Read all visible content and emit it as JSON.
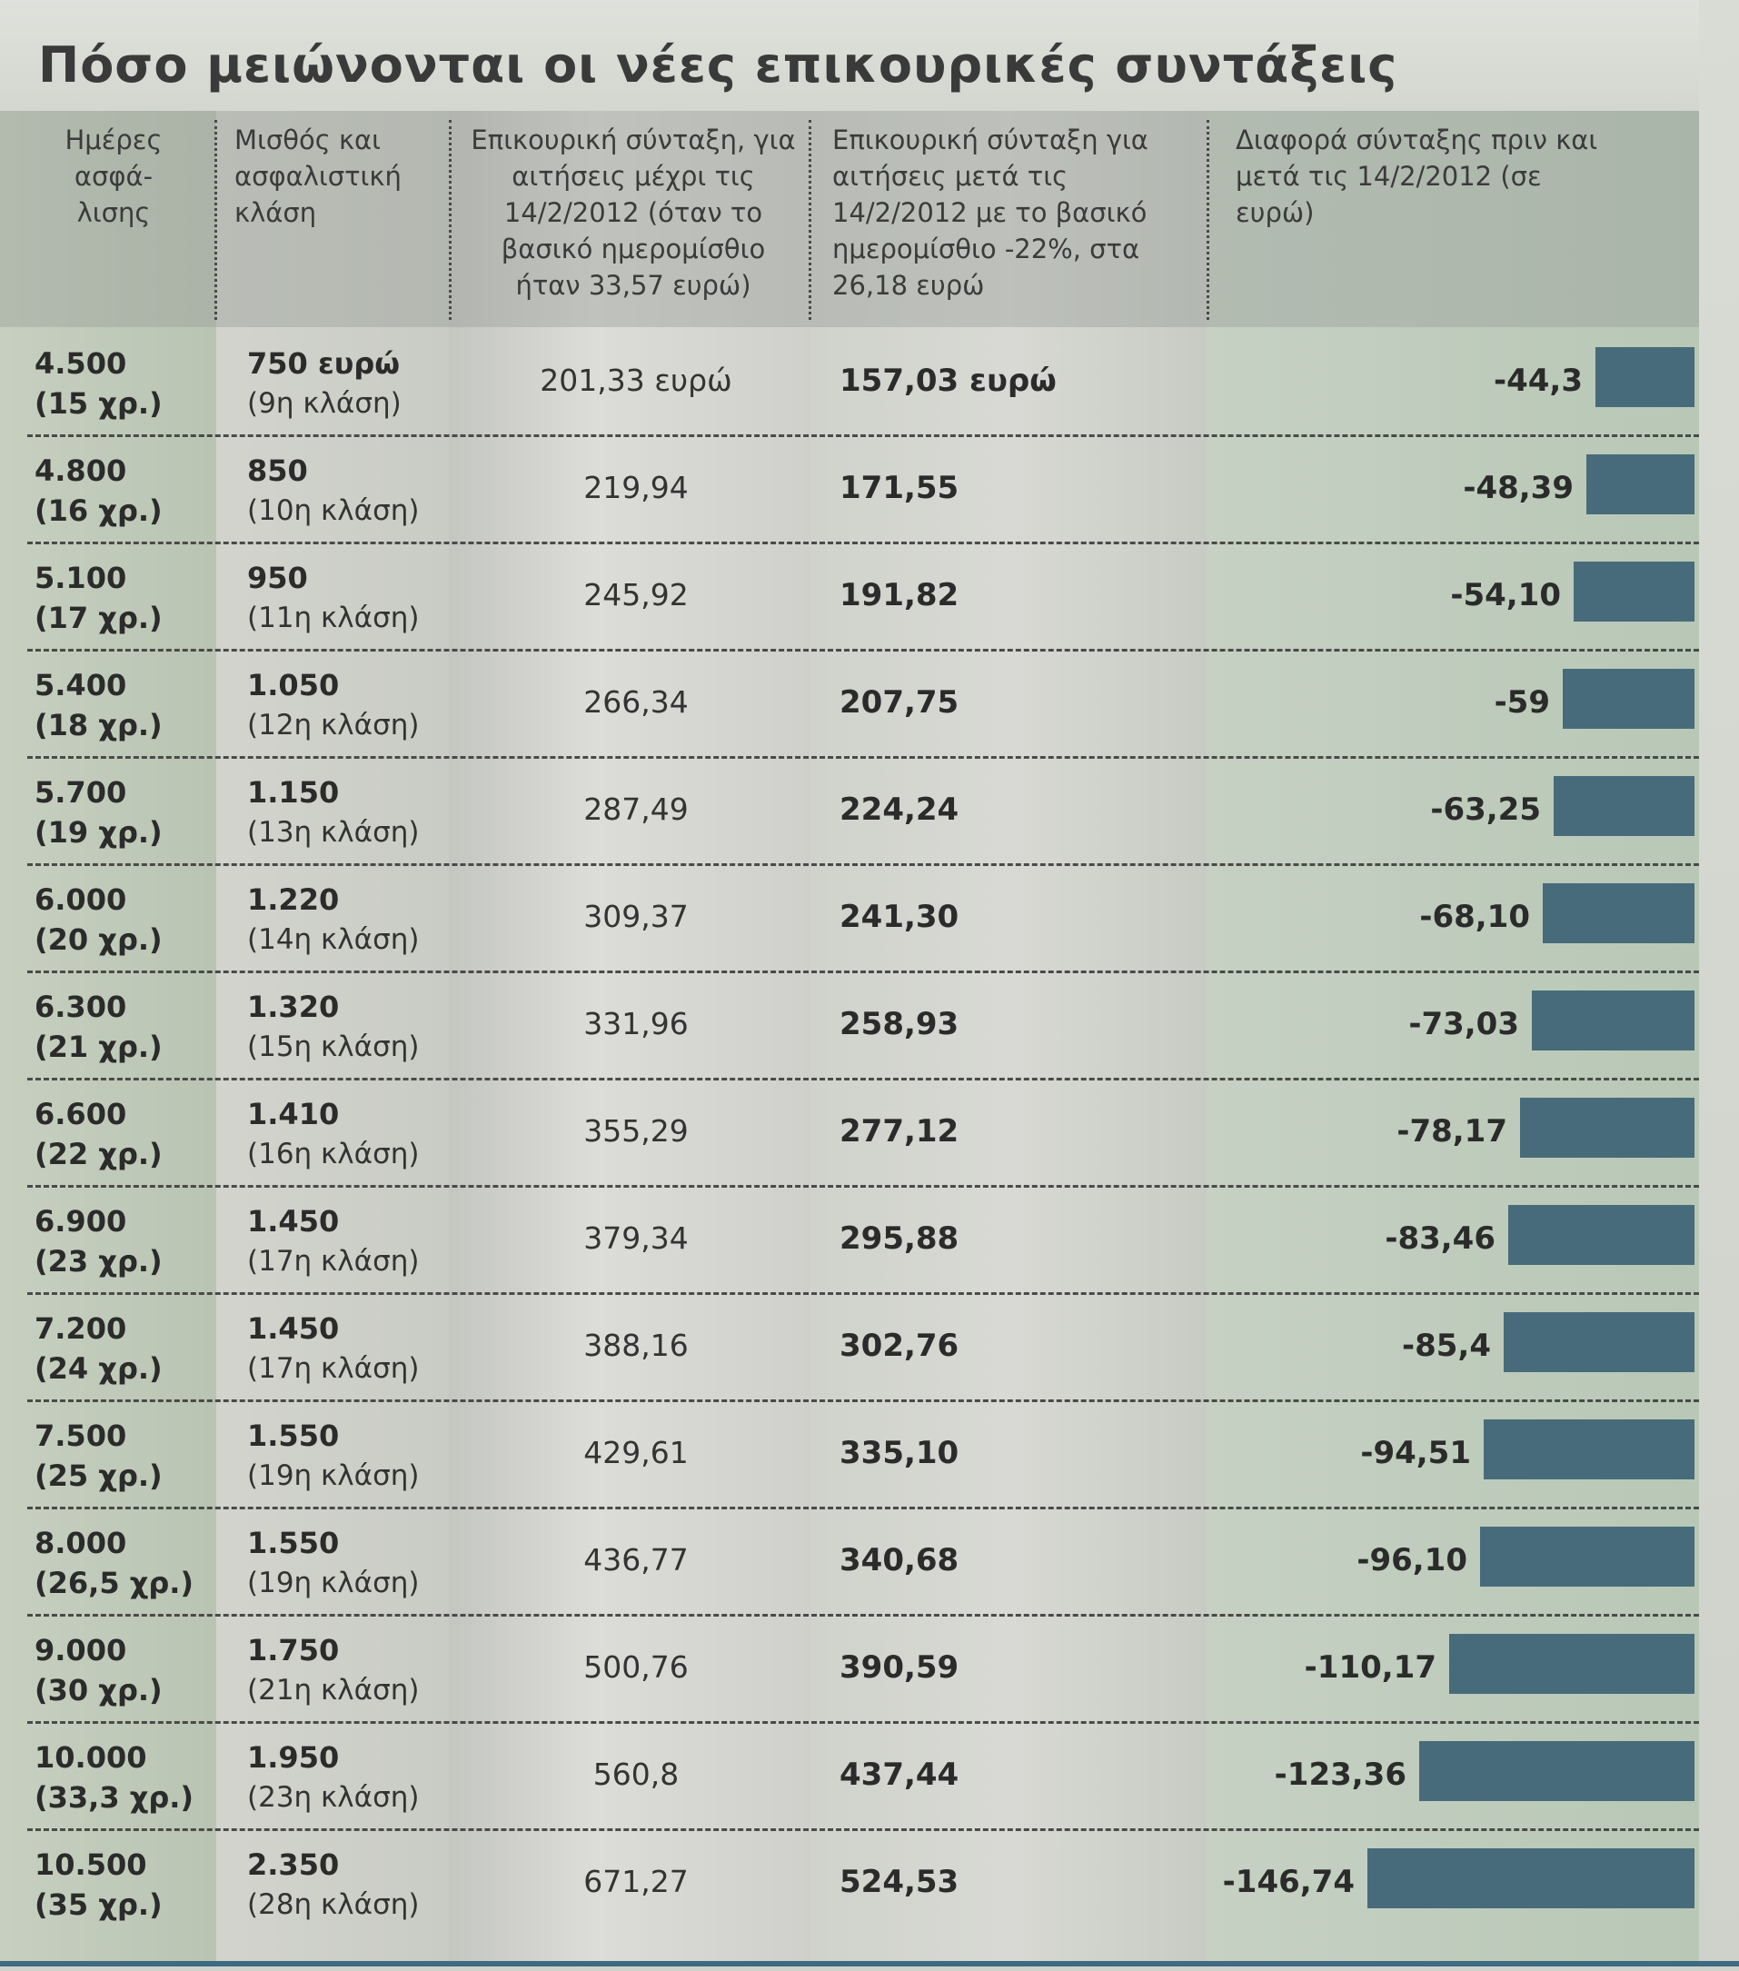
{
  "title": "Πόσο μειώνονται οι νέες επικουρικές συντάξεις",
  "chart_data": {
    "type": "table",
    "title": "Πόσο μειώνονται οι νέες επικουρικές συντάξεις",
    "columns": [
      "Ημέρες ασφά- λισης",
      "Μισθός και ασφαλιστική κλάση",
      "Επικουρική σύνταξη, για αιτήσεις μέχρι τις 14/2/2012 (όταν το βασικό ημερομίσθιο ήταν 33,57 ευρώ)",
      "Επικουρική σύνταξη για αιτήσεις μετά τις 14/2/2012 με το βασικό ημερομίσθιο -22%, στα 26,18 ευρώ",
      "Διαφορά σύνταξης πριν και μετά τις 14/2/2012 (σε ευρώ)"
    ],
    "rows": [
      {
        "days": "4.500",
        "years": "(15 χρ.)",
        "salary": "750 ευρώ",
        "class": "(9η κλάση)",
        "before": "201,33 ευρώ",
        "after": "157,03 ευρώ",
        "diff_label": "-44,3",
        "diff": -44.3
      },
      {
        "days": "4.800",
        "years": "(16 χρ.)",
        "salary": "850",
        "class": "(10η κλάση)",
        "before": "219,94",
        "after": "171,55",
        "diff_label": "-48,39",
        "diff": -48.39
      },
      {
        "days": "5.100",
        "years": "(17 χρ.)",
        "salary": "950",
        "class": "(11η κλάση)",
        "before": "245,92",
        "after": "191,82",
        "diff_label": "-54,10",
        "diff": -54.1
      },
      {
        "days": "5.400",
        "years": "(18 χρ.)",
        "salary": "1.050",
        "class": "(12η κλάση)",
        "before": "266,34",
        "after": "207,75",
        "diff_label": "-59",
        "diff": -59
      },
      {
        "days": "5.700",
        "years": "(19 χρ.)",
        "salary": "1.150",
        "class": "(13η κλάση)",
        "before": "287,49",
        "after": "224,24",
        "diff_label": "-63,25",
        "diff": -63.25
      },
      {
        "days": "6.000",
        "years": "(20 χρ.)",
        "salary": "1.220",
        "class": "(14η κλάση)",
        "before": "309,37",
        "after": "241,30",
        "diff_label": "-68,10",
        "diff": -68.1
      },
      {
        "days": "6.300",
        "years": "(21 χρ.)",
        "salary": "1.320",
        "class": "(15η κλάση)",
        "before": "331,96",
        "after": "258,93",
        "diff_label": "-73,03",
        "diff": -73.03
      },
      {
        "days": "6.600",
        "years": "(22 χρ.)",
        "salary": "1.410",
        "class": "(16η κλάση)",
        "before": "355,29",
        "after": "277,12",
        "diff_label": "-78,17",
        "diff": -78.17
      },
      {
        "days": "6.900",
        "years": "(23 χρ.)",
        "salary": "1.450",
        "class": "(17η κλάση)",
        "before": "379,34",
        "after": "295,88",
        "diff_label": "-83,46",
        "diff": -83.46
      },
      {
        "days": "7.200",
        "years": "(24 χρ.)",
        "salary": "1.450",
        "class": "(17η κλάση)",
        "before": "388,16",
        "after": "302,76",
        "diff_label": "-85,4",
        "diff": -85.4
      },
      {
        "days": "7.500",
        "years": "(25 χρ.)",
        "salary": "1.550",
        "class": "(19η κλάση)",
        "before": "429,61",
        "after": "335,10",
        "diff_label": "-94,51",
        "diff": -94.51
      },
      {
        "days": "8.000",
        "years": "(26,5 χρ.)",
        "salary": "1.550",
        "class": "(19η κλάση)",
        "before": "436,77",
        "after": "340,68",
        "diff_label": "-96,10",
        "diff": -96.1
      },
      {
        "days": "9.000",
        "years": "(30 χρ.)",
        "salary": "1.750",
        "class": "(21η κλάση)",
        "before": "500,76",
        "after": "390,59",
        "diff_label": "-110,17",
        "diff": -110.17
      },
      {
        "days": "10.000",
        "years": "(33,3 χρ.)",
        "salary": "1.950",
        "class": "(23η κλάση)",
        "before": "560,8",
        "after": "437,44",
        "diff_label": "-123,36",
        "diff": -123.36
      },
      {
        "days": "10.500",
        "years": "(35 χρ.)",
        "salary": "2.350",
        "class": "(28η κλάση)",
        "before": "671,27",
        "after": "524,53",
        "diff_label": "-146,74",
        "diff": -146.74
      }
    ],
    "bar_color": "#476b7a"
  }
}
